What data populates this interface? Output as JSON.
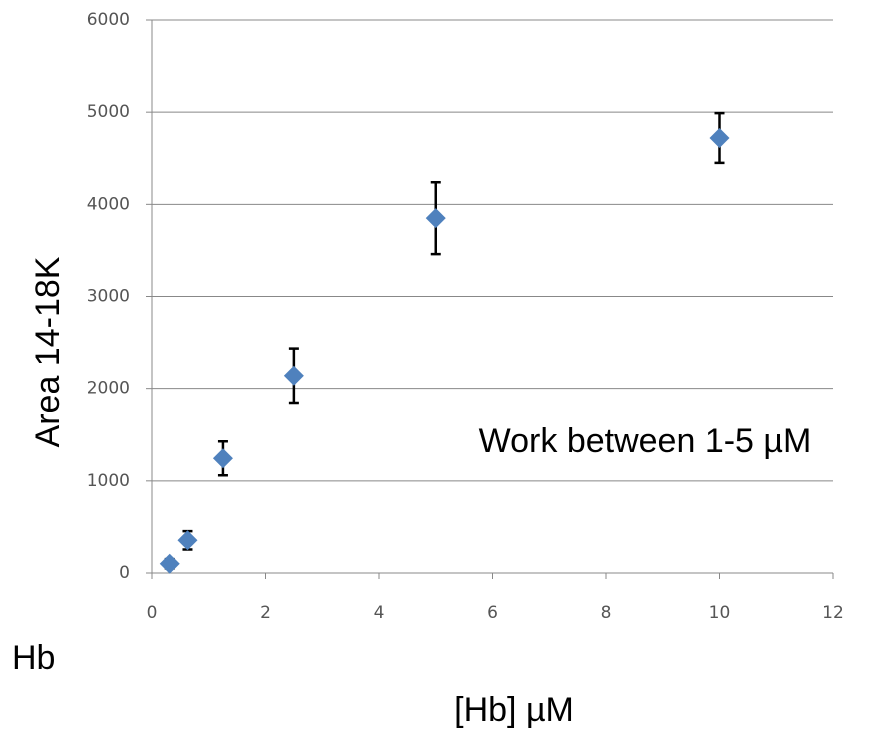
{
  "chart_data": {
    "type": "scatter",
    "y_label": "Area 14-18K",
    "x_label": "[Hb] µM",
    "annotations": [
      "Work between 1-5 µM",
      "Hb"
    ],
    "x": [
      0.3125,
      0.625,
      1.25,
      2.5,
      5,
      10
    ],
    "values": [
      100,
      355,
      1245,
      2140,
      3850,
      4720
    ],
    "errors": [
      50,
      100,
      185,
      295,
      390,
      270
    ],
    "color": "#4f81bd",
    "xlim": [
      0,
      12
    ],
    "xticks": [
      0,
      2,
      4,
      6,
      8,
      10,
      12
    ],
    "ylim": [
      0,
      6000
    ],
    "yticks": [
      0,
      1000,
      2000,
      3000,
      4000,
      5000,
      6000
    ],
    "grid": true
  }
}
